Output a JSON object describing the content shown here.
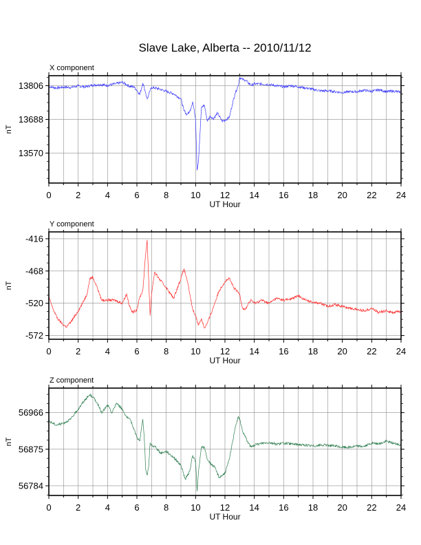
{
  "page": {
    "title": "Slave Lake, Alberta -- 2010/11/12"
  },
  "chart_data": [
    {
      "type": "line",
      "title": "X component",
      "xlabel": "UT Hour",
      "ylabel": "nT",
      "color": "#3a3aff",
      "xlim": [
        0,
        24
      ],
      "ylim": [
        13465,
        13841
      ],
      "xticks": [
        "0",
        "2",
        "4",
        "6",
        "8",
        "10",
        "12",
        "14",
        "16",
        "18",
        "20",
        "22",
        "24"
      ],
      "yticks": [
        13570,
        13688,
        13806
      ],
      "grid": true,
      "series": [
        {
          "x": [
            0,
            0.5,
            1,
            1.5,
            2,
            2.5,
            3,
            3.5,
            4,
            4.5,
            5,
            5.3,
            5.5,
            5.8,
            6,
            6.2,
            6.4,
            6.5,
            6.6,
            6.7,
            6.8,
            6.9,
            7,
            7.5,
            8,
            8.5,
            9,
            9.2,
            9.4,
            9.6,
            9.8,
            10,
            10.1,
            10.2,
            10.4,
            10.6,
            10.8,
            11,
            11.2,
            11.5,
            11.8,
            12,
            12.3,
            12.5,
            12.7,
            12.9,
            13,
            13.2,
            13.4,
            13.6,
            13.8,
            14,
            14.5,
            15,
            15.5,
            16,
            16.5,
            17,
            17.5,
            18,
            18.5,
            19,
            19.5,
            20,
            20.5,
            21,
            21.5,
            22,
            22.5,
            23,
            23.5,
            24
          ],
          "y": [
            13803,
            13798,
            13801,
            13800,
            13805,
            13802,
            13808,
            13810,
            13807,
            13812,
            13818,
            13810,
            13804,
            13802,
            13790,
            13775,
            13815,
            13800,
            13780,
            13760,
            13772,
            13790,
            13800,
            13795,
            13786,
            13778,
            13760,
            13720,
            13705,
            13715,
            13750,
            13690,
            13510,
            13545,
            13730,
            13738,
            13682,
            13700,
            13690,
            13710,
            13682,
            13685,
            13695,
            13740,
            13780,
            13805,
            13835,
            13828,
            13825,
            13815,
            13808,
            13812,
            13812,
            13810,
            13806,
            13802,
            13806,
            13802,
            13798,
            13793,
            13788,
            13788,
            13785,
            13782,
            13785,
            13785,
            13790,
            13786,
            13792,
            13785,
            13787,
            13783
          ]
        }
      ]
    },
    {
      "type": "line",
      "title": "Y component",
      "xlabel": "UT Hour",
      "ylabel": "nT",
      "color": "#ff2a2a",
      "xlim": [
        0,
        24
      ],
      "ylim": [
        -578,
        -405
      ],
      "xticks": [
        "0",
        "2",
        "4",
        "6",
        "8",
        "10",
        "12",
        "14",
        "16",
        "18",
        "20",
        "22",
        "24"
      ],
      "yticks": [
        -572,
        -520,
        -468,
        -416
      ],
      "grid": true,
      "series": [
        {
          "x": [
            0,
            0.3,
            0.6,
            1,
            1.2,
            1.5,
            1.8,
            2,
            2.3,
            2.6,
            2.8,
            3,
            3.3,
            3.6,
            4,
            4.5,
            5,
            5.3,
            5.5,
            5.7,
            6,
            6.2,
            6.4,
            6.5,
            6.6,
            6.7,
            6.8,
            6.9,
            7,
            7.2,
            7.5,
            8,
            8.5,
            9,
            9.2,
            9.4,
            9.6,
            9.8,
            10,
            10.2,
            10.4,
            10.6,
            10.8,
            11,
            11.3,
            11.6,
            12,
            12.3,
            12.6,
            13,
            13.2,
            13.4,
            13.6,
            13.8,
            14,
            14.5,
            15,
            15.5,
            16,
            16.5,
            17,
            17.5,
            18,
            18.5,
            19,
            19.5,
            20,
            20.5,
            21,
            21.5,
            22,
            22.5,
            23,
            23.5,
            24
          ],
          "y": [
            -510,
            -530,
            -545,
            -555,
            -558,
            -550,
            -540,
            -532,
            -520,
            -505,
            -480,
            -478,
            -495,
            -515,
            -515,
            -515,
            -520,
            -505,
            -525,
            -535,
            -530,
            -510,
            -500,
            -470,
            -440,
            -418,
            -480,
            -540,
            -505,
            -470,
            -480,
            -495,
            -512,
            -480,
            -465,
            -480,
            -505,
            -530,
            -540,
            -555,
            -545,
            -560,
            -552,
            -540,
            -520,
            -500,
            -485,
            -480,
            -495,
            -505,
            -528,
            -530,
            -520,
            -515,
            -520,
            -515,
            -520,
            -512,
            -515,
            -513,
            -508,
            -515,
            -518,
            -520,
            -525,
            -522,
            -525,
            -528,
            -530,
            -532,
            -528,
            -535,
            -532,
            -535,
            -533
          ]
        }
      ]
    },
    {
      "type": "line",
      "title": "Z component",
      "xlabel": "UT Hour",
      "ylabel": "nT",
      "color": "#2e7d4f",
      "xlim": [
        0,
        24
      ],
      "ylim": [
        56760,
        57027
      ],
      "xticks": [
        "0",
        "2",
        "4",
        "6",
        "8",
        "10",
        "12",
        "14",
        "16",
        "18",
        "20",
        "22",
        "24"
      ],
      "yticks": [
        56784,
        56875,
        56966
      ],
      "grid": true,
      "series": [
        {
          "x": [
            0,
            0.5,
            1,
            1.5,
            2,
            2.5,
            2.8,
            3,
            3.3,
            3.6,
            4,
            4.3,
            4.6,
            5,
            5.3,
            5.6,
            6,
            6.2,
            6.4,
            6.5,
            6.6,
            6.7,
            6.8,
            6.9,
            7,
            7.3,
            7.6,
            8,
            8.5,
            9,
            9.3,
            9.6,
            9.8,
            10,
            10.1,
            10.2,
            10.4,
            10.6,
            10.8,
            11,
            11.3,
            11.6,
            12,
            12.3,
            12.5,
            12.7,
            12.9,
            13,
            13.2,
            13.4,
            13.6,
            13.8,
            14,
            14.5,
            15,
            15.5,
            16,
            16.5,
            17,
            17.5,
            18,
            18.5,
            19,
            19.5,
            20,
            20.5,
            21,
            21.5,
            22,
            22.5,
            23,
            23.5,
            24
          ],
          "y": [
            56945,
            56935,
            56940,
            56950,
            56975,
            57000,
            57010,
            57005,
            56990,
            56965,
            56985,
            56965,
            56990,
            56975,
            56955,
            56945,
            56905,
            56895,
            56950,
            56905,
            56825,
            56810,
            56830,
            56890,
            56885,
            56880,
            56865,
            56870,
            56855,
            56835,
            56800,
            56820,
            56860,
            56845,
            56770,
            56820,
            56880,
            56880,
            56850,
            56840,
            56830,
            56805,
            56815,
            56850,
            56890,
            56930,
            56955,
            56950,
            56920,
            56905,
            56890,
            56880,
            56885,
            56890,
            56892,
            56888,
            56890,
            56888,
            56887,
            56885,
            56883,
            56885,
            56885,
            56883,
            56880,
            56880,
            56883,
            56882,
            56890,
            56888,
            56895,
            56890,
            56885
          ]
        }
      ]
    }
  ]
}
